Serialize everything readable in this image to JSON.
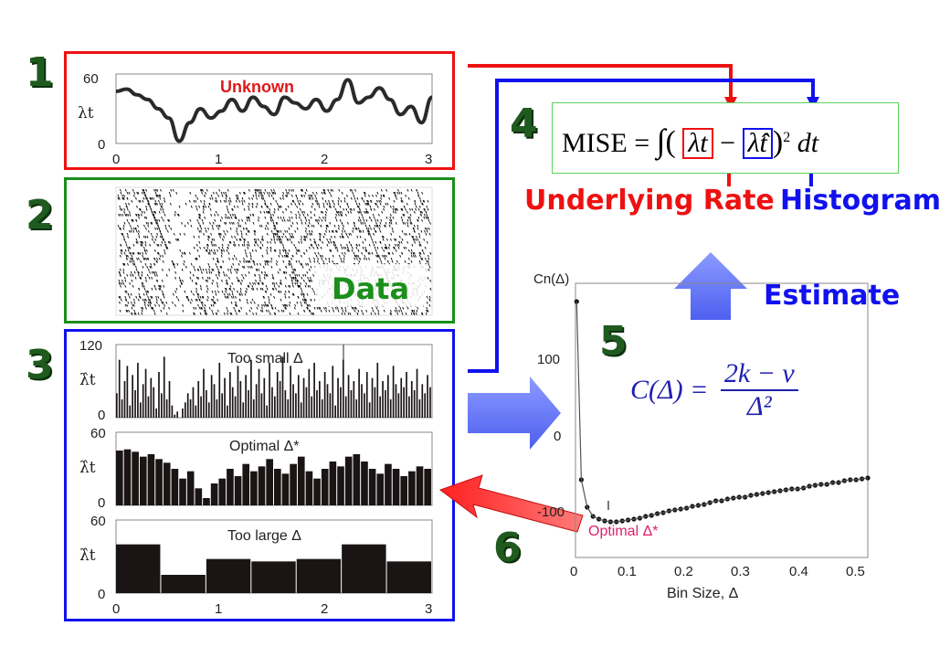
{
  "steps": [
    "1",
    "2",
    "3",
    "4",
    "5",
    "6"
  ],
  "panel1": {
    "annotation": "Unknown",
    "ylabel": "λt",
    "yticks": [
      "60",
      "0"
    ],
    "xticks": [
      "0",
      "1",
      "2",
      "3"
    ]
  },
  "panel2": {
    "label": "Data"
  },
  "panel3": {
    "hists": [
      {
        "title": "Too small Δ",
        "ylabel": "λ̂t",
        "yticks": [
          "120",
          "0"
        ]
      },
      {
        "title": "Optimal Δ*",
        "ylabel": "λ̂t",
        "yticks": [
          "60",
          "0"
        ]
      },
      {
        "title": "Too large Δ",
        "ylabel": "λ̂t",
        "yticks": [
          "60",
          "0"
        ]
      }
    ],
    "xticks": [
      "0",
      "1",
      "2",
      "3"
    ]
  },
  "mise": {
    "lhs": "MISE",
    "equals": "=",
    "integral": "∫",
    "term1": "λt",
    "minus": "−",
    "term2": "λ̂t",
    "power": "2",
    "dt": "dt",
    "underlying_label": "Underlying Rate",
    "histogram_label": "Histogram"
  },
  "estimate_label": "Estimate",
  "cost_plot": {
    "ylabel": "Cn(Δ)",
    "xlabel": "Bin Size, Δ",
    "yticks": [
      "100",
      "0",
      "-100"
    ],
    "xticks": [
      "0",
      "0.1",
      "0.2",
      "0.3",
      "0.4",
      "0.5"
    ],
    "optimal_label": "Optimal Δ*",
    "formula": {
      "lhs": "C(Δ) =",
      "numerator": "2k − ν",
      "denominator": "Δ²"
    }
  },
  "colors": {
    "red": "#ee1111",
    "blue": "#1111ee",
    "green": "#1b8f1b",
    "dark_green": "#1f5a1f",
    "arrow_blue": "#6a7cf5",
    "arrow_red": "#f53b3b",
    "optimal_pink": "#e0206b"
  },
  "chart_data": [
    {
      "type": "line",
      "title": "Unknown",
      "ylabel": "λt",
      "ylim": [
        0,
        60
      ],
      "xlim": [
        0,
        3
      ],
      "x": [
        0,
        0.1,
        0.2,
        0.3,
        0.4,
        0.5,
        0.6,
        0.7,
        0.8,
        0.9,
        1.0,
        1.1,
        1.2,
        1.3,
        1.4,
        1.5,
        1.6,
        1.7,
        1.8,
        1.9,
        2.0,
        2.1,
        2.2,
        2.3,
        2.4,
        2.5,
        2.6,
        2.7,
        2.8,
        2.9,
        3.0
      ],
      "y": [
        45,
        47,
        42,
        38,
        30,
        22,
        2,
        18,
        30,
        22,
        28,
        38,
        28,
        40,
        32,
        25,
        40,
        35,
        30,
        38,
        28,
        38,
        55,
        35,
        40,
        48,
        38,
        25,
        32,
        18,
        40
      ]
    },
    {
      "type": "bar",
      "title": "Too small Δ",
      "ylim": [
        0,
        120
      ],
      "xlim": [
        0,
        3
      ],
      "values": [
        40,
        95,
        30,
        60,
        85,
        20,
        70,
        45,
        90,
        25,
        55,
        80,
        35,
        65,
        50,
        15,
        75,
        40,
        100,
        30,
        60,
        20,
        5,
        10,
        0,
        15,
        25,
        40,
        30,
        50,
        20,
        60,
        35,
        80,
        45,
        25,
        70,
        55,
        30,
        90,
        40,
        65,
        20,
        75,
        50,
        35,
        85,
        60,
        25,
        70,
        45,
        95,
        30,
        55,
        80,
        40,
        65,
        20,
        90,
        50,
        35,
        75,
        60,
        100,
        45,
        30,
        85,
        55,
        40,
        70,
        25,
        65,
        50,
        80,
        35,
        90,
        45,
        60,
        30,
        75,
        55,
        40,
        85,
        20,
        65,
        50,
        95,
        35,
        70,
        45,
        60,
        30,
        80,
        55,
        40,
        75,
        25,
        65,
        50,
        90,
        35,
        60,
        45,
        70,
        30,
        85,
        55,
        40,
        65,
        50,
        75,
        35,
        60,
        45,
        80,
        30,
        55,
        40,
        70,
        50
      ]
    },
    {
      "type": "bar",
      "title": "Optimal Δ*",
      "ylim": [
        0,
        60
      ],
      "xlim": [
        0,
        3
      ],
      "values": [
        45,
        46,
        44,
        40,
        42,
        38,
        35,
        30,
        22,
        28,
        14,
        6,
        18,
        22,
        30,
        24,
        34,
        28,
        32,
        38,
        30,
        26,
        34,
        40,
        28,
        22,
        30,
        36,
        32,
        40,
        42,
        36,
        30,
        26,
        34,
        30,
        24,
        28,
        32,
        30
      ]
    },
    {
      "type": "bar",
      "title": "Too large Δ",
      "ylim": [
        0,
        60
      ],
      "xlim": [
        0,
        3
      ],
      "values": [
        40,
        15,
        28,
        26,
        28,
        40,
        26
      ]
    },
    {
      "type": "scatter",
      "ylabel": "Cn(Δ)",
      "xlabel": "Bin Size, Δ",
      "xlim": [
        0,
        0.5
      ],
      "ylim": [
        -130,
        170
      ],
      "x": [
        0.002,
        0.01,
        0.02,
        0.03,
        0.04,
        0.05,
        0.06,
        0.07,
        0.08,
        0.09,
        0.1,
        0.11,
        0.12,
        0.13,
        0.14,
        0.15,
        0.16,
        0.17,
        0.18,
        0.19,
        0.2,
        0.21,
        0.22,
        0.23,
        0.24,
        0.25,
        0.26,
        0.27,
        0.28,
        0.29,
        0.3,
        0.31,
        0.32,
        0.33,
        0.34,
        0.35,
        0.36,
        0.37,
        0.38,
        0.39,
        0.4,
        0.41,
        0.42,
        0.43,
        0.44,
        0.45,
        0.46,
        0.47,
        0.48,
        0.49,
        0.5
      ],
      "y": [
        150,
        -45,
        -75,
        -85,
        -88,
        -90,
        -91,
        -91,
        -90,
        -89,
        -88,
        -87,
        -85,
        -84,
        -82,
        -81,
        -79,
        -78,
        -77,
        -76,
        -74,
        -73,
        -72,
        -70,
        -68,
        -68,
        -66,
        -65,
        -64,
        -64,
        -62,
        -61,
        -60,
        -59,
        -58,
        -57,
        -56,
        -55,
        -55,
        -54,
        -52,
        -51,
        -50,
        -50,
        -48,
        -48,
        -46,
        -45,
        -45,
        -44,
        -43
      ]
    }
  ]
}
